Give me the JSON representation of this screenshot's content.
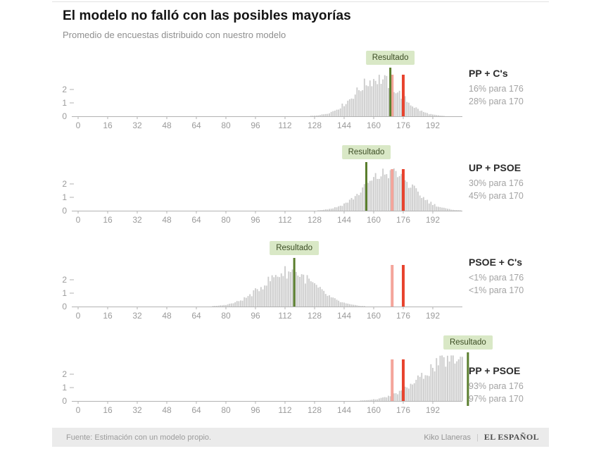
{
  "chart_data": {
    "type": "bar",
    "variant": "histogram-small-multiples",
    "title": "El modelo no falló con las posibles mayorías",
    "subtitle": "Promedio de encuestas distribuido con nuestro modelo",
    "x_ticks": [
      0,
      16,
      32,
      48,
      64,
      80,
      96,
      112,
      128,
      144,
      160,
      176,
      192
    ],
    "x_max": 208,
    "y_ticks": [
      0,
      1,
      2
    ],
    "grid": false,
    "legend_position": "right",
    "markers": {
      "pink_line_x": 170,
      "red_line_x": 176,
      "pink_color": "#f4a49a",
      "red_color": "#e8442f",
      "result_color": "#5a7e2d",
      "bar_color": "#cdcdcd"
    },
    "panels": [
      {
        "title": "PP + C's",
        "resultado_label": "Resultado",
        "result_x": 169,
        "distribution": {
          "mean": 162,
          "sd": 12,
          "peak": 2.8
        },
        "stats": [
          "16% para 176",
          "28% para 170"
        ]
      },
      {
        "title": "UP + PSOE",
        "resultado_label": "Resultado",
        "result_x": 156,
        "distribution": {
          "mean": 168,
          "sd": 13,
          "peak": 2.8
        },
        "stats": [
          "30% para 176",
          "45% para 170"
        ]
      },
      {
        "title": "PSOE + C's",
        "resultado_label": "Resultado",
        "result_x": 117,
        "distribution": {
          "mean": 114,
          "sd": 14,
          "peak": 2.6
        },
        "stats": [
          "<1% para 176",
          "<1% para 170"
        ]
      },
      {
        "title": "PP + PSOE",
        "resultado_label": "Resultado",
        "result_x": 211,
        "distribution": {
          "mean": 204,
          "sd": 17,
          "peak": 3.2
        },
        "stats": [
          "93% para 176",
          "97% para 170"
        ]
      }
    ]
  },
  "footer": {
    "source": "Fuente: Estimación con un modelo propio.",
    "author": "Kiko Llaneras",
    "separator": "|",
    "brand": "EL ESPAÑOL"
  }
}
